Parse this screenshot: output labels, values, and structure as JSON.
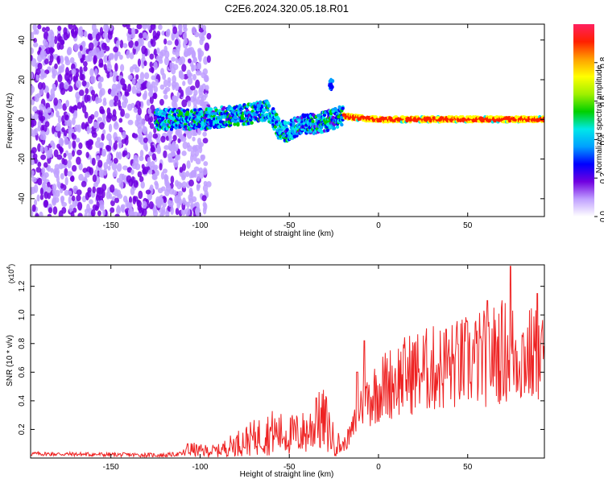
{
  "title": "C2E6.2024.320.05.18.R01",
  "chart_data": [
    {
      "type": "heatmap",
      "xlabel": "Height of straight line (km)",
      "ylabel": "Frequency (Hz)",
      "xlim": [
        -195,
        93
      ],
      "ylim": [
        -49,
        48
      ],
      "xticks": [
        -150,
        -100,
        -50,
        0,
        50
      ],
      "yticks": [
        -40,
        -20,
        0,
        20,
        40
      ],
      "colorbar": {
        "label": "Normalized spectral amplitude",
        "range": [
          0,
          1
        ],
        "ticks": [
          0.0,
          0.2,
          0.4,
          0.6,
          0.8
        ],
        "colors": [
          "#ffffff",
          "#c0a0ff",
          "#7000e0",
          "#0000ff",
          "#00a0ff",
          "#00e8e8",
          "#00d000",
          "#a0f000",
          "#ffff00",
          "#ffa000",
          "#ff2000",
          "#ff2060"
        ]
      },
      "features": {
        "noise_region_x": [
          -195,
          -95
        ],
        "band_center_points": [
          [
            -120,
            0
          ],
          [
            -100,
            0
          ],
          [
            -90,
            1
          ],
          [
            -80,
            2
          ],
          [
            -70,
            3
          ],
          [
            -62,
            5
          ],
          [
            -55,
            -6
          ],
          [
            -50,
            -6
          ],
          [
            -45,
            -3
          ],
          [
            -35,
            -2
          ],
          [
            -25,
            0
          ],
          [
            -20,
            2
          ],
          [
            -15,
            1
          ],
          [
            0,
            0
          ],
          [
            93,
            0
          ]
        ],
        "spike": {
          "x": -27,
          "y": 18
        }
      }
    },
    {
      "type": "line",
      "xlabel": "Height of straight line (km)",
      "ylabel": "SNR (10 * v/v)",
      "y_multiplier": "(x10",
      "y_multiplier_exponent": "4",
      "y_multiplier_close": ")",
      "xlim": [
        -195,
        93
      ],
      "ylim": [
        0,
        1.35
      ],
      "xticks": [
        -150,
        -100,
        -50,
        0,
        50
      ],
      "yticks": [
        0.2,
        0.4,
        0.6,
        0.8,
        1.0,
        1.2
      ],
      "line_color": "#ee2222",
      "series": [
        {
          "profile": [
            [
              -195,
              0.03
            ],
            [
              -120,
              0.02
            ],
            [
              -110,
              0.03
            ],
            [
              -105,
              0.06
            ],
            [
              -100,
              0.05
            ],
            [
              -90,
              0.05
            ],
            [
              -80,
              0.1
            ],
            [
              -70,
              0.14
            ],
            [
              -60,
              0.18
            ],
            [
              -50,
              0.16
            ],
            [
              -40,
              0.18
            ],
            [
              -35,
              0.24
            ],
            [
              -30,
              0.26
            ],
            [
              -25,
              0.12
            ],
            [
              -20,
              0.08
            ],
            [
              -15,
              0.18
            ],
            [
              -10,
              0.38
            ],
            [
              -5,
              0.42
            ],
            [
              0,
              0.48
            ],
            [
              10,
              0.55
            ],
            [
              20,
              0.6
            ],
            [
              30,
              0.62
            ],
            [
              40,
              0.64
            ],
            [
              50,
              0.67
            ],
            [
              60,
              0.7
            ],
            [
              70,
              0.75
            ],
            [
              80,
              0.72
            ],
            [
              93,
              0.7
            ]
          ],
          "peaks": [
            [
              -107,
              0.1
            ],
            [
              -35,
              0.42
            ],
            [
              -12,
              0.6
            ],
            [
              -8,
              0.82
            ],
            [
              38,
              0.9
            ],
            [
              61,
              1.1
            ],
            [
              74,
              1.34
            ],
            [
              89,
              1.15
            ]
          ]
        }
      ]
    }
  ]
}
